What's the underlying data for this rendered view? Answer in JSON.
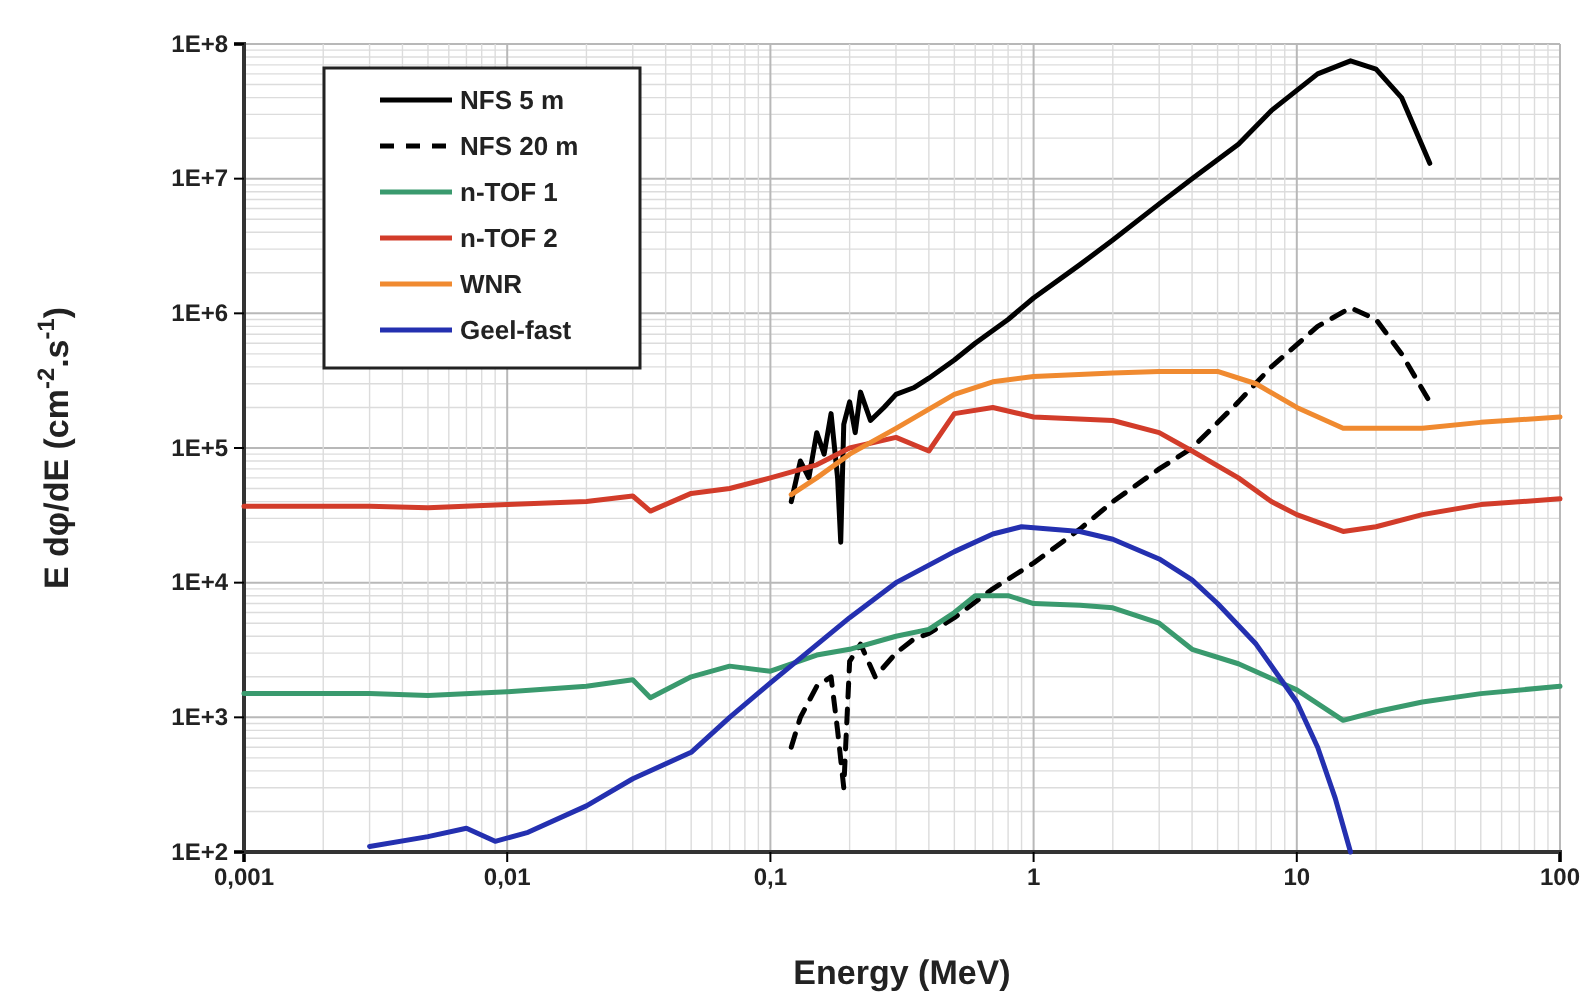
{
  "chart_data": {
    "type": "line",
    "xlabel": "Energy (MeV)",
    "ylabel": "E dφ/dE (cm$^{-2}$.s$^{-1}$)",
    "log": "xy",
    "grid": true,
    "legend": "top left",
    "marker": "none",
    "xlim": [
      0.001,
      100
    ],
    "ylim": [
      100,
      100000000
    ],
    "xticks": [
      {
        "value": 0.001,
        "label": "0,001"
      },
      {
        "value": 0.01,
        "label": "0,01"
      },
      {
        "value": 0.1,
        "label": "0,1"
      },
      1,
      10,
      100
    ],
    "yticks": [
      {
        "value": 100,
        "label": "1E+2"
      },
      {
        "value": 1000,
        "label": "1E+3"
      },
      {
        "value": 10000,
        "label": "1E+4"
      },
      {
        "value": 100000,
        "label": "1E+5"
      },
      {
        "value": 1000000,
        "label": "1E+6"
      },
      {
        "value": 10000000,
        "label": "1E+7"
      },
      {
        "value": 100000000,
        "label": "1E+8"
      }
    ],
    "series": [
      {
        "name": "NFS 5 m",
        "color": "#000000",
        "line_style": "solid",
        "x": [
          0.12,
          0.13,
          0.14,
          0.15,
          0.16,
          0.17,
          0.18,
          0.185,
          0.19,
          0.2,
          0.21,
          0.22,
          0.24,
          0.27,
          0.3,
          0.35,
          0.4,
          0.5,
          0.6,
          0.8,
          1,
          1.5,
          2,
          3,
          4,
          6,
          8,
          12,
          16,
          20,
          25,
          32
        ],
        "values": [
          40000,
          80000,
          60000,
          130000,
          90000,
          180000,
          60000,
          20000,
          150000,
          220000,
          130000,
          260000,
          160000,
          200000,
          250000,
          280000,
          330000,
          450000,
          600000,
          900000,
          1300000,
          2300000,
          3500000,
          6500000,
          10000000,
          18000000,
          32000000,
          60000000,
          75000000,
          65000000,
          40000000,
          13000000
        ]
      },
      {
        "name": "NFS 20 m",
        "color": "#000000",
        "line_style": "dashed",
        "x": [
          0.12,
          0.13,
          0.15,
          0.17,
          0.18,
          0.19,
          0.2,
          0.22,
          0.25,
          0.3,
          0.35,
          0.4,
          0.5,
          0.7,
          1,
          1.5,
          2,
          3,
          4,
          6,
          8,
          12,
          16,
          20,
          25,
          32
        ],
        "values": [
          600,
          1000,
          1700,
          2000,
          800,
          300,
          2600,
          3500,
          2000,
          3000,
          3800,
          4200,
          5500,
          9000,
          14000,
          25000,
          40000,
          70000,
          100000,
          220000,
          400000,
          800000,
          1100000,
          900000,
          500000,
          220000
        ]
      },
      {
        "name": "n-TOF 1",
        "color": "#3a9a6e",
        "line_style": "solid",
        "x": [
          0.001,
          0.003,
          0.005,
          0.01,
          0.02,
          0.03,
          0.035,
          0.05,
          0.07,
          0.1,
          0.15,
          0.2,
          0.3,
          0.4,
          0.5,
          0.6,
          0.8,
          1,
          1.5,
          2,
          3,
          4,
          6,
          10,
          15,
          20,
          30,
          50,
          100
        ],
        "values": [
          1500,
          1500,
          1450,
          1550,
          1700,
          1900,
          1400,
          2000,
          2400,
          2200,
          2900,
          3200,
          4000,
          4500,
          6000,
          8000,
          8000,
          7000,
          6800,
          6500,
          5000,
          3200,
          2500,
          1600,
          950,
          1100,
          1300,
          1500,
          1700
        ]
      },
      {
        "name": "n-TOF 2",
        "color": "#d23c2a",
        "line_style": "solid",
        "x": [
          0.001,
          0.003,
          0.005,
          0.01,
          0.02,
          0.03,
          0.035,
          0.05,
          0.07,
          0.1,
          0.15,
          0.2,
          0.3,
          0.4,
          0.5,
          0.7,
          1,
          2,
          3,
          4,
          6,
          8,
          10,
          15,
          20,
          30,
          50,
          100
        ],
        "values": [
          37000,
          37000,
          36000,
          38000,
          40000,
          44000,
          34000,
          46000,
          50000,
          60000,
          75000,
          100000,
          120000,
          95000,
          180000,
          200000,
          170000,
          160000,
          130000,
          95000,
          60000,
          40000,
          32000,
          24000,
          26000,
          32000,
          38000,
          42000
        ]
      },
      {
        "name": "WNR",
        "color": "#f08a30",
        "line_style": "solid",
        "x": [
          0.12,
          0.15,
          0.2,
          0.3,
          0.5,
          0.7,
          1,
          2,
          3,
          5,
          7,
          10,
          15,
          20,
          30,
          50,
          100
        ],
        "values": [
          45000,
          60000,
          90000,
          140000,
          250000,
          310000,
          340000,
          360000,
          370000,
          370000,
          300000,
          200000,
          140000,
          140000,
          140000,
          155000,
          170000
        ]
      },
      {
        "name": "Geel-fast",
        "color": "#2430b0",
        "line_style": "solid",
        "x": [
          0.003,
          0.005,
          0.007,
          0.009,
          0.012,
          0.02,
          0.03,
          0.05,
          0.07,
          0.1,
          0.2,
          0.3,
          0.5,
          0.7,
          0.9,
          1.5,
          2,
          3,
          4,
          5,
          7,
          10,
          12,
          14,
          16
        ],
        "values": [
          110,
          130,
          150,
          120,
          140,
          220,
          350,
          550,
          1000,
          1800,
          5500,
          10000,
          17000,
          23000,
          26000,
          24000,
          21000,
          15000,
          10500,
          7000,
          3500,
          1300,
          600,
          250,
          100
        ]
      }
    ]
  }
}
